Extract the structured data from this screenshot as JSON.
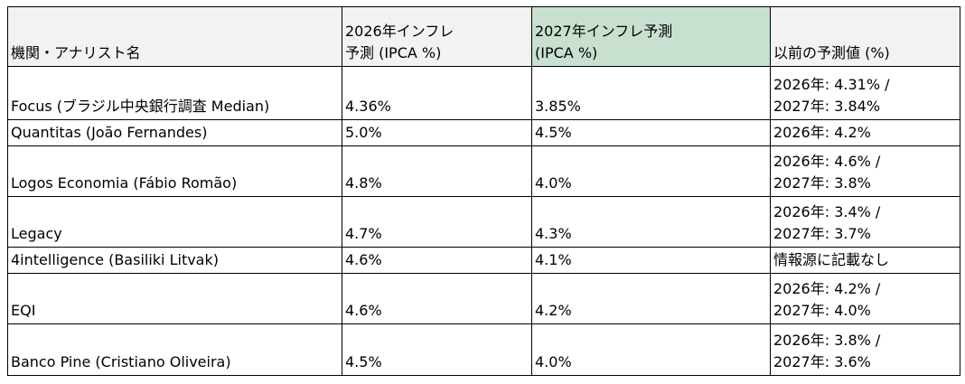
{
  "table": {
    "columns": [
      {
        "label": "機関・アナリスト名",
        "highlight": false
      },
      {
        "label": "2026年インフレ\n予測 (IPCA %)",
        "highlight": false
      },
      {
        "label": "2027年インフレ予測\n(IPCA %)",
        "highlight": true
      },
      {
        "label": "以前の予測値 (%)",
        "highlight": false
      }
    ],
    "rows": [
      {
        "cells": [
          "Focus (ブラジル中央銀行調査 Median)",
          "4.36%",
          "3.85%",
          "2026年: 4.31% /\n2027年: 3.84%"
        ]
      },
      {
        "cells": [
          "Quantitas (João Fernandes)",
          "5.0%",
          "4.5%",
          "2026年: 4.2%"
        ]
      },
      {
        "cells": [
          "Logos Economia (Fábio Romão)",
          "4.8%",
          "4.0%",
          "2026年: 4.6% /\n2027年: 3.8%"
        ]
      },
      {
        "cells": [
          "Legacy",
          "4.7%",
          "4.3%",
          "2026年: 3.4% /\n2027年: 3.7%"
        ]
      },
      {
        "cells": [
          "4intelligence (Basiliki Litvak)",
          "4.6%",
          "4.1%",
          "情報源に記載なし"
        ]
      },
      {
        "cells": [
          "EQI",
          "4.6%",
          "4.2%",
          "2026年: 4.2% /\n2027年: 4.0%"
        ]
      },
      {
        "cells": [
          "Banco Pine (Cristiano Oliveira)",
          "4.5%",
          "4.0%",
          "2026年: 3.8% /\n2027年: 3.6%"
        ]
      }
    ]
  },
  "colors": {
    "header_bg": "#f2f2f2",
    "highlight_header_bg": "#c7e0cf",
    "border": "#000000",
    "text": "#000000",
    "background": "#ffffff"
  }
}
